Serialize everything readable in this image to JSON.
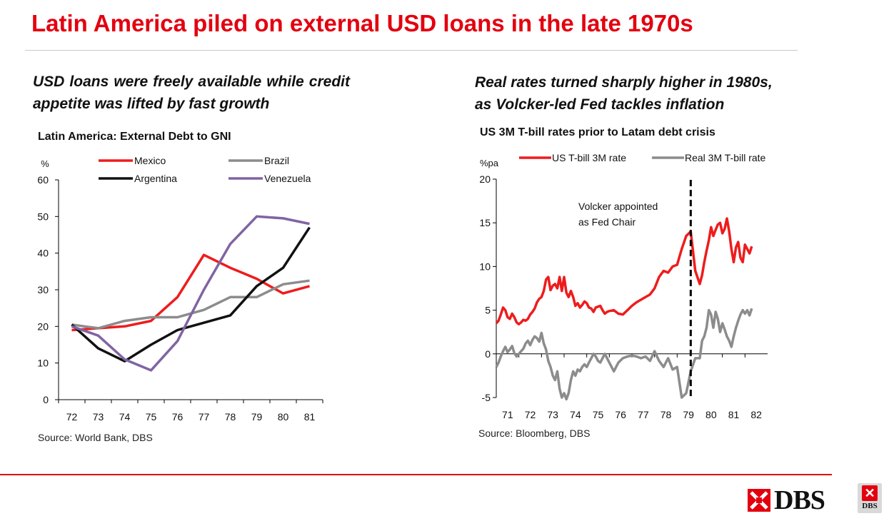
{
  "slide": {
    "title": "Latin America piled on external USD loans in the late 1970s",
    "left_subtitle": "USD loans were freely available while credit appetite was lifted by fast growth",
    "right_subtitle_line1": "Real rates turned sharply higher in 1980s,",
    "right_subtitle_line2": "as Volcker-led Fed tackles inflation",
    "brand_text": "DBS",
    "badge_text": "DBS",
    "colors": {
      "brand_red": "#e3000f",
      "rule_gray": "#c8c8c8"
    }
  },
  "chart_data": [
    {
      "type": "line",
      "title": "Latin America: External Debt to GNI",
      "ylabel": "%",
      "source": "Source: World Bank, DBS",
      "categories": [
        "72",
        "73",
        "74",
        "75",
        "76",
        "77",
        "78",
        "79",
        "80",
        "81"
      ],
      "ylim": [
        0,
        60
      ],
      "yticks": [
        "0",
        "10",
        "20",
        "30",
        "40",
        "50",
        "60"
      ],
      "legend_position": "top",
      "series": [
        {
          "name": "Mexico",
          "color": "#ee1c1c",
          "values": [
            19,
            19.5,
            20,
            21.5,
            28,
            39.5,
            36,
            33,
            29,
            31
          ]
        },
        {
          "name": "Brazil",
          "color": "#8c8c8c",
          "values": [
            20.5,
            19.5,
            21.5,
            22.5,
            22.5,
            24.5,
            28,
            28,
            31.5,
            32.5
          ]
        },
        {
          "name": "Argentina",
          "color": "#111111",
          "values": [
            20.5,
            14,
            10.5,
            15,
            19,
            21,
            23,
            31,
            36,
            47
          ]
        },
        {
          "name": "Venezuela",
          "color": "#8064a2",
          "values": [
            20,
            17.5,
            11,
            8,
            16,
            30,
            42.5,
            50,
            49.5,
            48
          ]
        }
      ]
    },
    {
      "type": "line",
      "title": "US 3M T-bill rates prior to Latam debt crisis",
      "ylabel": "%pa",
      "source": "Source: Bloomberg, DBS",
      "categories": [
        "71",
        "72",
        "73",
        "74",
        "75",
        "76",
        "77",
        "78",
        "79",
        "80",
        "81",
        "82"
      ],
      "xlim": [
        71,
        82
      ],
      "ylim": [
        -5,
        20
      ],
      "yticks": [
        "-5",
        "0",
        "5",
        "10",
        "15",
        "20"
      ],
      "legend_position": "top",
      "annotation": {
        "text_line1": "Volcker appointed",
        "text_line2": "as Fed Chair",
        "x": 79.6
      },
      "series": [
        {
          "name": "US T-bill 3M rate",
          "color": "#ee1c1c",
          "x": [
            71,
            71.1,
            71.2,
            71.3,
            71.4,
            71.5,
            71.6,
            71.7,
            71.8,
            71.9,
            72,
            72.1,
            72.2,
            72.3,
            72.4,
            72.5,
            72.6,
            72.7,
            72.8,
            72.9,
            73,
            73.1,
            73.2,
            73.3,
            73.4,
            73.5,
            73.6,
            73.7,
            73.8,
            73.9,
            74,
            74.1,
            74.2,
            74.3,
            74.4,
            74.5,
            74.6,
            74.7,
            74.8,
            74.9,
            75,
            75.1,
            75.2,
            75.3,
            75.4,
            75.5,
            75.6,
            75.7,
            75.8,
            75.9,
            76,
            76.2,
            76.4,
            76.6,
            76.8,
            77,
            77.2,
            77.4,
            77.6,
            77.8,
            78,
            78.2,
            78.4,
            78.6,
            78.8,
            79,
            79.2,
            79.4,
            79.6,
            79.8,
            80,
            80.1,
            80.2,
            80.3,
            80.4,
            80.5,
            80.6,
            80.7,
            80.8,
            80.9,
            81,
            81.1,
            81.2,
            81.3,
            81.4,
            81.5,
            81.6,
            81.7,
            81.8,
            81.9,
            82,
            82.1,
            82.2,
            82.3
          ],
          "values": [
            3.5,
            3.8,
            4.5,
            5.3,
            5.0,
            4.2,
            4.0,
            4.6,
            4.2,
            3.6,
            3.4,
            3.6,
            3.9,
            3.8,
            4.0,
            4.5,
            4.8,
            5.2,
            5.9,
            6.3,
            6.5,
            7.2,
            8.5,
            8.8,
            7.3,
            7.8,
            8.0,
            7.5,
            8.8,
            7.2,
            8.8,
            7.0,
            6.5,
            7.2,
            6.5,
            5.5,
            5.8,
            5.3,
            5.6,
            6.0,
            5.8,
            5.3,
            5.2,
            4.8,
            5.3,
            5.4,
            5.5,
            5.0,
            4.6,
            4.8,
            4.9,
            5.0,
            4.6,
            4.5,
            5.0,
            5.5,
            5.9,
            6.2,
            6.5,
            6.8,
            7.5,
            8.8,
            9.5,
            9.3,
            10.0,
            10.2,
            12.0,
            13.5,
            14.0,
            9.5,
            8.0,
            9.0,
            10.5,
            11.8,
            13.0,
            14.5,
            13.5,
            14.2,
            14.8,
            15.0,
            13.8,
            14.3,
            15.5,
            14.0,
            12.0,
            10.5,
            12.2,
            12.8,
            11.0,
            10.5,
            12.5,
            12.0,
            11.5,
            12.3
          ]
        },
        {
          "name": "Real 3M T-bill rate",
          "color": "#8c8c8c",
          "x": [
            71,
            71.1,
            71.2,
            71.3,
            71.4,
            71.5,
            71.6,
            71.7,
            71.8,
            71.9,
            72,
            72.1,
            72.2,
            72.3,
            72.4,
            72.5,
            72.6,
            72.7,
            72.8,
            72.9,
            73,
            73.1,
            73.2,
            73.3,
            73.4,
            73.5,
            73.6,
            73.7,
            73.8,
            73.9,
            74,
            74.1,
            74.2,
            74.3,
            74.4,
            74.5,
            74.6,
            74.7,
            74.8,
            74.9,
            75,
            75.1,
            75.2,
            75.3,
            75.4,
            75.5,
            75.6,
            75.7,
            75.8,
            75.9,
            76,
            76.2,
            76.4,
            76.6,
            76.8,
            77,
            77.2,
            77.4,
            77.6,
            77.8,
            78,
            78.2,
            78.4,
            78.6,
            78.8,
            79,
            79.2,
            79.4,
            79.6,
            79.8,
            80,
            80.1,
            80.2,
            80.3,
            80.4,
            80.5,
            80.6,
            80.7,
            80.8,
            80.9,
            81,
            81.1,
            81.2,
            81.3,
            81.4,
            81.5,
            81.6,
            81.7,
            81.8,
            81.9,
            82,
            82.1,
            82.2,
            82.3
          ],
          "values": [
            -1.5,
            -1.0,
            -0.3,
            0.3,
            0.8,
            0.2,
            0.5,
            0.9,
            0.1,
            -0.3,
            0.0,
            0.3,
            0.6,
            1.2,
            1.5,
            1.0,
            1.6,
            2.0,
            1.8,
            1.4,
            2.4,
            1.2,
            0.5,
            -0.8,
            -1.5,
            -2.5,
            -3.0,
            -2.0,
            -4.0,
            -5.0,
            -4.5,
            -5.2,
            -4.5,
            -3.0,
            -2.0,
            -2.5,
            -1.8,
            -2.0,
            -1.5,
            -1.2,
            -1.5,
            -1.0,
            -0.5,
            0.0,
            -0.3,
            -0.8,
            -1.0,
            -0.5,
            0.0,
            -0.5,
            -1.0,
            -2.0,
            -1.0,
            -0.5,
            -0.3,
            -0.2,
            -0.3,
            -0.5,
            -0.3,
            -0.8,
            0.3,
            -0.8,
            -1.5,
            -0.5,
            -1.8,
            -1.5,
            -5.0,
            -4.5,
            -2.0,
            -0.5,
            -0.5,
            1.5,
            2.0,
            3.0,
            5.0,
            4.5,
            3.0,
            4.8,
            4.0,
            2.5,
            3.5,
            2.8,
            2.0,
            1.5,
            0.8,
            2.0,
            3.0,
            3.8,
            4.5,
            5.0,
            4.6,
            5.0,
            4.4,
            5.2
          ]
        }
      ]
    }
  ]
}
